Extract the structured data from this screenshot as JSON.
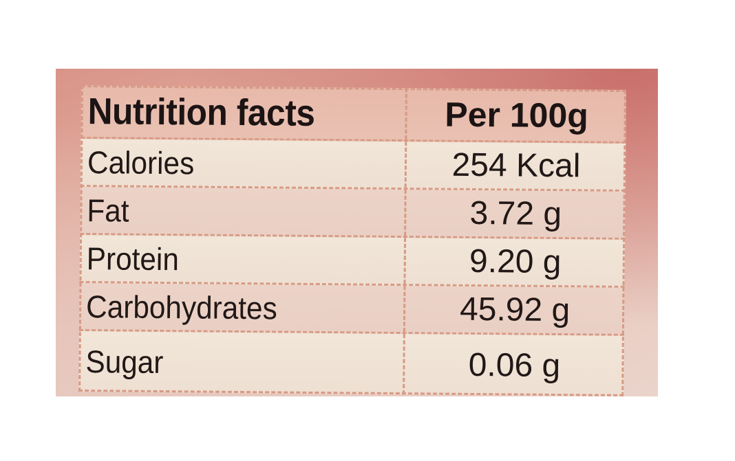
{
  "table": {
    "header": {
      "label": "Nutrition facts",
      "value": "Per 100g"
    },
    "rows": [
      {
        "label": "Calories",
        "value": "254 Kcal"
      },
      {
        "label": "Fat",
        "value": "3.72 g"
      },
      {
        "label": "Protein",
        "value": "9.20 g"
      },
      {
        "label": "Carbohydrates",
        "value": "45.92 g"
      },
      {
        "label": "Sugar",
        "value": "0.06 g"
      }
    ]
  },
  "colors": {
    "packaging": "#e4b3a6",
    "table_cream": "#f1e6d8",
    "table_pink": "#ecd3c7",
    "grid_line": "#d79a86",
    "text": "#211817"
  }
}
